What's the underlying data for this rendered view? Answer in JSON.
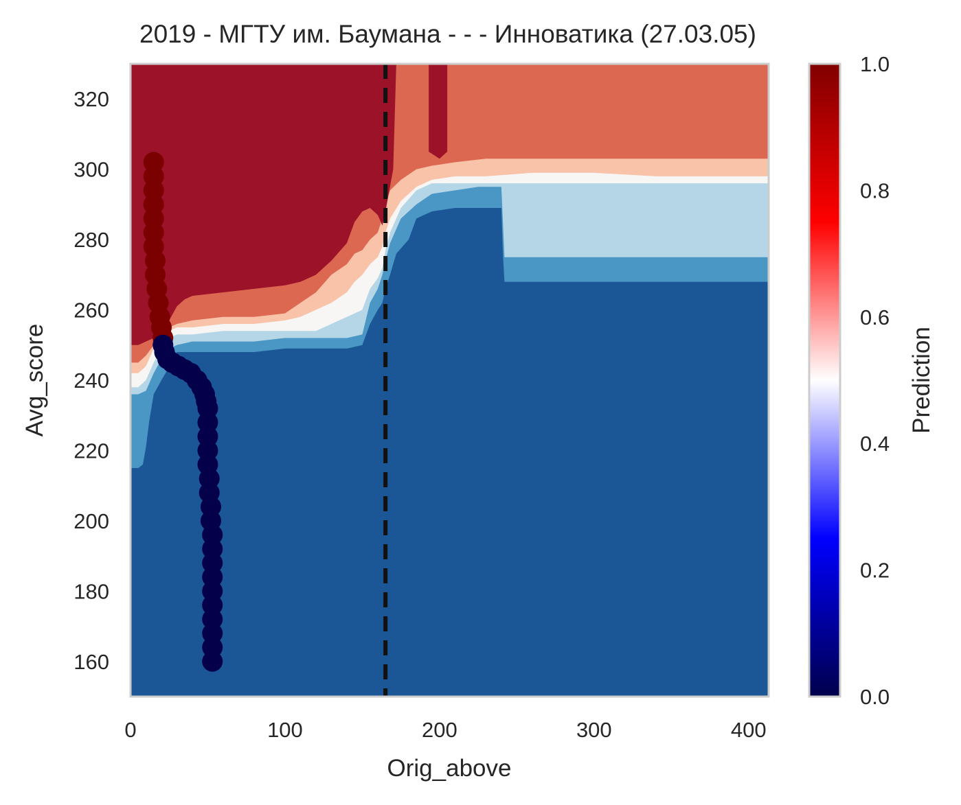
{
  "chart_data": {
    "type": "heatmap",
    "title": "2019 - МГТУ им. Баумана - - - Инноватика (27.03.05)",
    "xlabel": "Orig_above",
    "ylabel": "Avg_score",
    "xlim": [
      0,
      413
    ],
    "ylim": [
      150,
      330
    ],
    "x_ticks": [
      0,
      100,
      200,
      300,
      400
    ],
    "x_tick_labels": [
      "0",
      "100",
      "200",
      "300",
      "400"
    ],
    "y_ticks": [
      160,
      180,
      200,
      220,
      240,
      260,
      280,
      300,
      320
    ],
    "y_tick_labels": [
      "160",
      "180",
      "200",
      "220",
      "240",
      "260",
      "280",
      "300",
      "320"
    ],
    "grid": false,
    "colorbar": {
      "label": "Prediction",
      "range": [
        0.0,
        1.0
      ],
      "ticks": [
        0.0,
        0.2,
        0.4,
        0.6,
        0.8,
        1.0
      ],
      "tick_labels": [
        "0.0",
        "0.2",
        "0.4",
        "0.6",
        "0.8",
        "1.0"
      ],
      "colormap": "seismic"
    },
    "vline": {
      "x": 165,
      "style": "dashed",
      "color": "#111111"
    },
    "contour_levels": [
      {
        "level": 0.1,
        "color": "#1b5796"
      },
      {
        "level": 0.2,
        "color": "#4a96c4"
      },
      {
        "level": 0.4,
        "color": "#b5d6e7"
      },
      {
        "level": 0.5,
        "color": "#f7f6f5"
      },
      {
        "level": 0.6,
        "color": "#f8c3a9"
      },
      {
        "level": 0.8,
        "color": "#dc6852"
      },
      {
        "level": 0.9,
        "color": "#9c1228"
      }
    ],
    "boundaries": [
      {
        "name": "b01",
        "color": "#4a96c4",
        "points": [
          [
            0,
            215
          ],
          [
            5,
            215
          ],
          [
            8,
            216
          ],
          [
            10,
            221
          ],
          [
            12,
            228
          ],
          [
            15,
            236
          ],
          [
            20,
            240
          ],
          [
            24,
            243
          ],
          [
            27,
            246
          ],
          [
            30,
            248
          ],
          [
            40,
            248
          ],
          [
            60,
            248
          ],
          [
            80,
            248
          ],
          [
            100,
            249
          ],
          [
            120,
            249
          ],
          [
            140,
            249
          ],
          [
            150,
            250
          ],
          [
            155,
            256
          ],
          [
            160,
            260
          ],
          [
            163,
            262
          ],
          [
            165,
            266
          ],
          [
            168,
            270
          ],
          [
            172,
            276
          ],
          [
            180,
            280
          ],
          [
            185,
            286
          ],
          [
            195,
            288
          ],
          [
            210,
            289
          ],
          [
            225,
            289
          ],
          [
            235,
            289
          ],
          [
            240,
            289
          ],
          [
            241,
            276
          ],
          [
            242,
            268
          ],
          [
            413,
            268
          ]
        ]
      },
      {
        "name": "b02",
        "color": "#b5d6e7",
        "points": [
          [
            0,
            236
          ],
          [
            5,
            236
          ],
          [
            10,
            237
          ],
          [
            15,
            242
          ],
          [
            20,
            246
          ],
          [
            25,
            249
          ],
          [
            30,
            250
          ],
          [
            40,
            251
          ],
          [
            60,
            251
          ],
          [
            80,
            251
          ],
          [
            100,
            252
          ],
          [
            120,
            252
          ],
          [
            140,
            252
          ],
          [
            150,
            253
          ],
          [
            155,
            262
          ],
          [
            160,
            266
          ],
          [
            163,
            270
          ],
          [
            165,
            274
          ],
          [
            168,
            279
          ],
          [
            175,
            286
          ],
          [
            185,
            290
          ],
          [
            195,
            293
          ],
          [
            210,
            294
          ],
          [
            225,
            295
          ],
          [
            235,
            295
          ],
          [
            240,
            295
          ],
          [
            241,
            285
          ],
          [
            242,
            275
          ],
          [
            413,
            275
          ]
        ]
      },
      {
        "name": "b03",
        "color": "#f7f6f5",
        "points": [
          [
            0,
            238
          ],
          [
            5,
            238
          ],
          [
            10,
            240
          ],
          [
            15,
            245
          ],
          [
            20,
            249
          ],
          [
            25,
            252
          ],
          [
            30,
            253
          ],
          [
            40,
            253
          ],
          [
            60,
            254
          ],
          [
            80,
            254
          ],
          [
            100,
            254
          ],
          [
            120,
            254
          ],
          [
            130,
            256
          ],
          [
            140,
            258
          ],
          [
            150,
            260
          ],
          [
            155,
            266
          ],
          [
            160,
            269
          ],
          [
            163,
            272
          ],
          [
            165,
            277
          ],
          [
            168,
            282
          ],
          [
            175,
            289
          ],
          [
            185,
            294
          ],
          [
            195,
            296
          ],
          [
            210,
            296
          ],
          [
            230,
            296
          ],
          [
            260,
            296
          ],
          [
            300,
            296
          ],
          [
            340,
            296
          ],
          [
            380,
            296
          ],
          [
            413,
            296
          ]
        ]
      },
      {
        "name": "b04",
        "color": "#f8c3a9",
        "points": [
          [
            0,
            242
          ],
          [
            5,
            242
          ],
          [
            10,
            244
          ],
          [
            15,
            249
          ],
          [
            20,
            252
          ],
          [
            25,
            254
          ],
          [
            30,
            255
          ],
          [
            40,
            255
          ],
          [
            60,
            256
          ],
          [
            80,
            256
          ],
          [
            100,
            257
          ],
          [
            110,
            258
          ],
          [
            120,
            260
          ],
          [
            130,
            262
          ],
          [
            140,
            265
          ],
          [
            145,
            268
          ],
          [
            150,
            270
          ],
          [
            155,
            273
          ],
          [
            160,
            275
          ],
          [
            163,
            278
          ],
          [
            165,
            282
          ],
          [
            168,
            286
          ],
          [
            175,
            291
          ],
          [
            185,
            295
          ],
          [
            195,
            297
          ],
          [
            210,
            298
          ],
          [
            230,
            298
          ],
          [
            260,
            299
          ],
          [
            300,
            299
          ],
          [
            340,
            298
          ],
          [
            360,
            298
          ],
          [
            380,
            298
          ],
          [
            413,
            298
          ]
        ]
      },
      {
        "name": "b05",
        "color": "#dc6852",
        "points": [
          [
            0,
            245
          ],
          [
            5,
            245
          ],
          [
            10,
            247
          ],
          [
            15,
            250
          ],
          [
            20,
            253
          ],
          [
            25,
            255
          ],
          [
            30,
            256
          ],
          [
            40,
            257
          ],
          [
            60,
            258
          ],
          [
            80,
            258
          ],
          [
            100,
            259
          ],
          [
            110,
            262
          ],
          [
            120,
            265
          ],
          [
            130,
            270
          ],
          [
            140,
            273
          ],
          [
            145,
            276
          ],
          [
            150,
            277
          ],
          [
            155,
            280
          ],
          [
            160,
            282
          ],
          [
            163,
            286
          ],
          [
            165,
            290
          ],
          [
            168,
            294
          ],
          [
            175,
            297
          ],
          [
            185,
            300
          ],
          [
            195,
            301
          ],
          [
            210,
            302
          ],
          [
            230,
            303
          ],
          [
            260,
            303
          ],
          [
            300,
            303
          ],
          [
            340,
            303
          ],
          [
            380,
            303
          ],
          [
            413,
            303
          ]
        ]
      },
      {
        "name": "b06",
        "color": "#9c1228",
        "points": [
          [
            0,
            250
          ],
          [
            5,
            250
          ],
          [
            10,
            251
          ],
          [
            15,
            252
          ],
          [
            20,
            253
          ],
          [
            25,
            257
          ],
          [
            30,
            261
          ],
          [
            35,
            263
          ],
          [
            40,
            264
          ],
          [
            60,
            265
          ],
          [
            80,
            266
          ],
          [
            100,
            267
          ],
          [
            110,
            268
          ],
          [
            120,
            270
          ],
          [
            130,
            274
          ],
          [
            140,
            279
          ],
          [
            145,
            285
          ],
          [
            150,
            288
          ],
          [
            155,
            289
          ],
          [
            160,
            287
          ],
          [
            163,
            284
          ],
          [
            165,
            288
          ],
          [
            170,
            300
          ],
          [
            172,
            330
          ],
          [
            193,
            330
          ],
          [
            193,
            305
          ],
          [
            200,
            303
          ],
          [
            205,
            305
          ],
          [
            205,
            330
          ],
          [
            413,
            330
          ]
        ]
      }
    ],
    "series": [
      {
        "color": "#7b0000",
        "points": [
          [
            15,
            302
          ],
          [
            15,
            298
          ],
          [
            15,
            294
          ],
          [
            15,
            290
          ],
          [
            15,
            286
          ],
          [
            15,
            282
          ],
          [
            15,
            278
          ],
          [
            16,
            274
          ],
          [
            16,
            270
          ],
          [
            17,
            266
          ],
          [
            18,
            262
          ],
          [
            19,
            258
          ],
          [
            20,
            255
          ],
          [
            21,
            252
          ]
        ]
      },
      {
        "color": "#04004a",
        "points": [
          [
            21,
            250
          ],
          [
            22,
            248
          ],
          [
            24,
            246
          ],
          [
            27,
            245
          ],
          [
            31,
            244
          ],
          [
            35,
            243
          ],
          [
            39,
            242
          ],
          [
            43,
            240
          ],
          [
            46,
            238
          ],
          [
            48,
            236
          ],
          [
            49,
            234
          ],
          [
            50,
            232
          ],
          [
            50,
            228
          ],
          [
            50,
            224
          ],
          [
            50,
            220
          ],
          [
            50,
            216
          ],
          [
            51,
            212
          ],
          [
            51,
            208
          ],
          [
            52,
            204
          ],
          [
            52,
            200
          ],
          [
            53,
            196
          ],
          [
            53,
            192
          ],
          [
            53,
            188
          ],
          [
            53,
            184
          ],
          [
            53,
            180
          ],
          [
            53,
            176
          ],
          [
            53,
            172
          ],
          [
            53,
            168
          ],
          [
            53,
            164
          ],
          [
            53,
            160
          ]
        ]
      }
    ]
  }
}
